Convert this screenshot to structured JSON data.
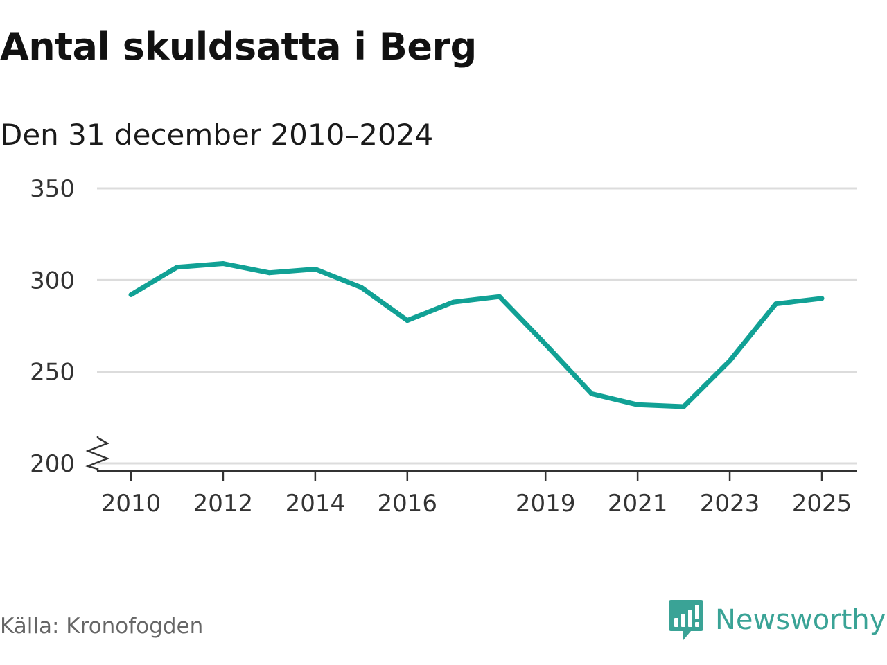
{
  "title": "Antal skuldsatta i Berg",
  "subtitle": "Den 31 december 2010–2024",
  "source": "Källa: Kronofogden",
  "brand": {
    "name": "Newsworthy",
    "icon": "newsworthy-logo-icon",
    "color": "#3aa396"
  },
  "colors": {
    "line": "#11a195",
    "grid": "#dcdcdc",
    "axis": "#333333"
  },
  "chart_data": {
    "type": "line",
    "title": "Antal skuldsatta i Berg",
    "subtitle": "Den 31 december 2010–2024",
    "xlabel": "",
    "ylabel": "",
    "x": [
      2010,
      2011,
      2012,
      2013,
      2014,
      2015,
      2016,
      2017,
      2018,
      2019,
      2020,
      2021,
      2022,
      2023,
      2024,
      2025
    ],
    "series": [
      {
        "name": "Antal skuldsatta",
        "values": [
          292,
          307,
          309,
          304,
          306,
          296,
          278,
          288,
          291,
          265,
          238,
          232,
          231,
          256,
          287,
          290
        ]
      }
    ],
    "xticks": [
      2010,
      2012,
      2014,
      2016,
      2019,
      2021,
      2023,
      2025
    ],
    "yticks": [
      200,
      250,
      300,
      350
    ],
    "ylim": [
      200,
      350
    ],
    "xlim": [
      2010,
      2025
    ],
    "y_axis_break": true,
    "grid": true
  }
}
